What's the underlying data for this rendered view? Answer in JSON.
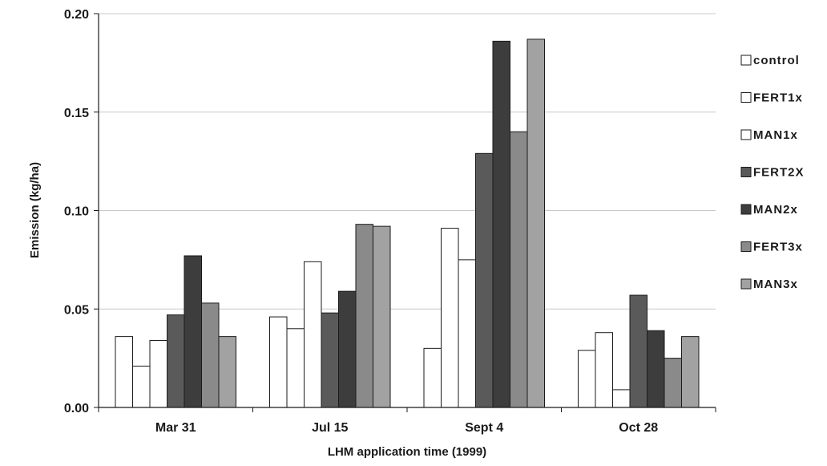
{
  "chart_data": {
    "type": "bar",
    "title": "",
    "xlabel": "LHM application time (1999)",
    "ylabel": "Emission (kg/ha)",
    "ylim": [
      0,
      0.2
    ],
    "yticks": [
      "0.00",
      "0.05",
      "0.10",
      "0.15",
      "0.20"
    ],
    "grid": true,
    "legend_position": "right",
    "categories": [
      "Mar 31",
      "Jul 15",
      "Sept 4",
      "Oct 28"
    ],
    "series": [
      {
        "name": "control",
        "values": [
          0.036,
          0.046,
          0.03,
          0.029
        ],
        "fill": "#ffffff"
      },
      {
        "name": "FERT1x",
        "values": [
          0.021,
          0.04,
          0.091,
          0.038
        ],
        "fill": "#ffffff"
      },
      {
        "name": "MAN1x",
        "values": [
          0.034,
          0.074,
          0.075,
          0.009
        ],
        "fill": "#ffffff"
      },
      {
        "name": "FERT2X",
        "values": [
          0.047,
          0.048,
          0.129,
          0.057
        ],
        "fill": "#5a5a5a"
      },
      {
        "name": "MAN2x",
        "values": [
          0.077,
          0.059,
          0.186,
          0.039
        ],
        "fill": "#3d3d3d"
      },
      {
        "name": "FERT3x",
        "values": [
          0.053,
          0.093,
          0.14,
          0.025
        ],
        "fill": "#8a8a8a"
      },
      {
        "name": "MAN3x",
        "values": [
          0.036,
          0.092,
          0.187,
          0.036
        ],
        "fill": "#a2a2a2"
      }
    ]
  }
}
